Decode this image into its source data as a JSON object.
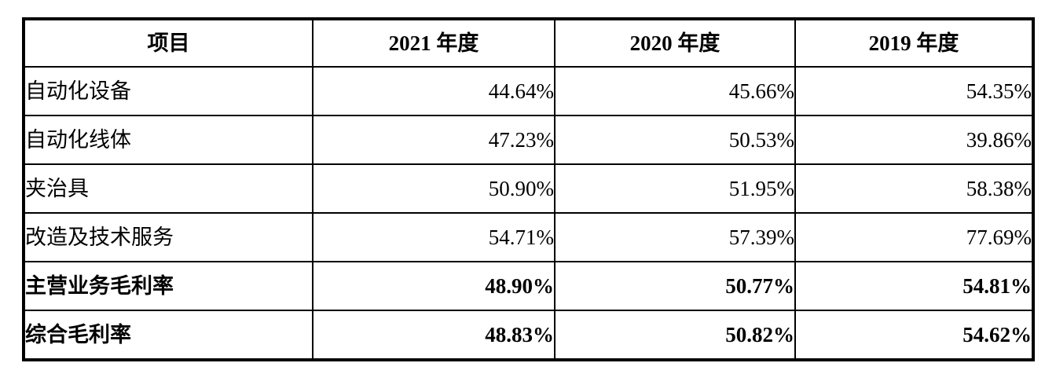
{
  "table": {
    "columns": [
      {
        "label": "项目"
      },
      {
        "label": "2021 年度"
      },
      {
        "label": "2020 年度"
      },
      {
        "label": "2019 年度"
      }
    ],
    "rows": [
      {
        "label": "自动化设备",
        "values": [
          "44.64%",
          "45.66%",
          "54.35%"
        ],
        "bold": false
      },
      {
        "label": "自动化线体",
        "values": [
          "47.23%",
          "50.53%",
          "39.86%"
        ],
        "bold": false
      },
      {
        "label": "夹治具",
        "values": [
          "50.90%",
          "51.95%",
          "58.38%"
        ],
        "bold": false
      },
      {
        "label": "改造及技术服务",
        "values": [
          "54.71%",
          "57.39%",
          "77.69%"
        ],
        "bold": false
      },
      {
        "label": "主营业务毛利率",
        "values": [
          "48.90%",
          "50.77%",
          "54.81%"
        ],
        "bold": true
      },
      {
        "label": "综合毛利率",
        "values": [
          "48.83%",
          "50.82%",
          "54.62%"
        ],
        "bold": true
      }
    ]
  },
  "colors": {
    "border": "#000000",
    "text": "#000000",
    "background": "#ffffff"
  }
}
